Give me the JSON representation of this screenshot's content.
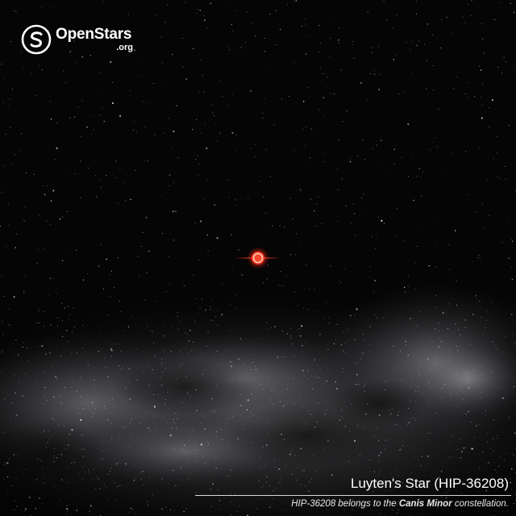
{
  "logo": {
    "name": "OpenStars",
    "tld": ".org",
    "icon": "openstars-logo-icon"
  },
  "star": {
    "icon": "red-star-icon",
    "color": "#ff3322"
  },
  "caption": {
    "title": "Luyten's Star (HIP-36208)",
    "sub_prefix": "HIP-36208 belongs to the ",
    "sub_constellation": "Canis Minor",
    "sub_suffix": " constellation."
  },
  "colors": {
    "sky": "#050505",
    "milky_way": "#8a8a90",
    "text": "#ffffff"
  }
}
